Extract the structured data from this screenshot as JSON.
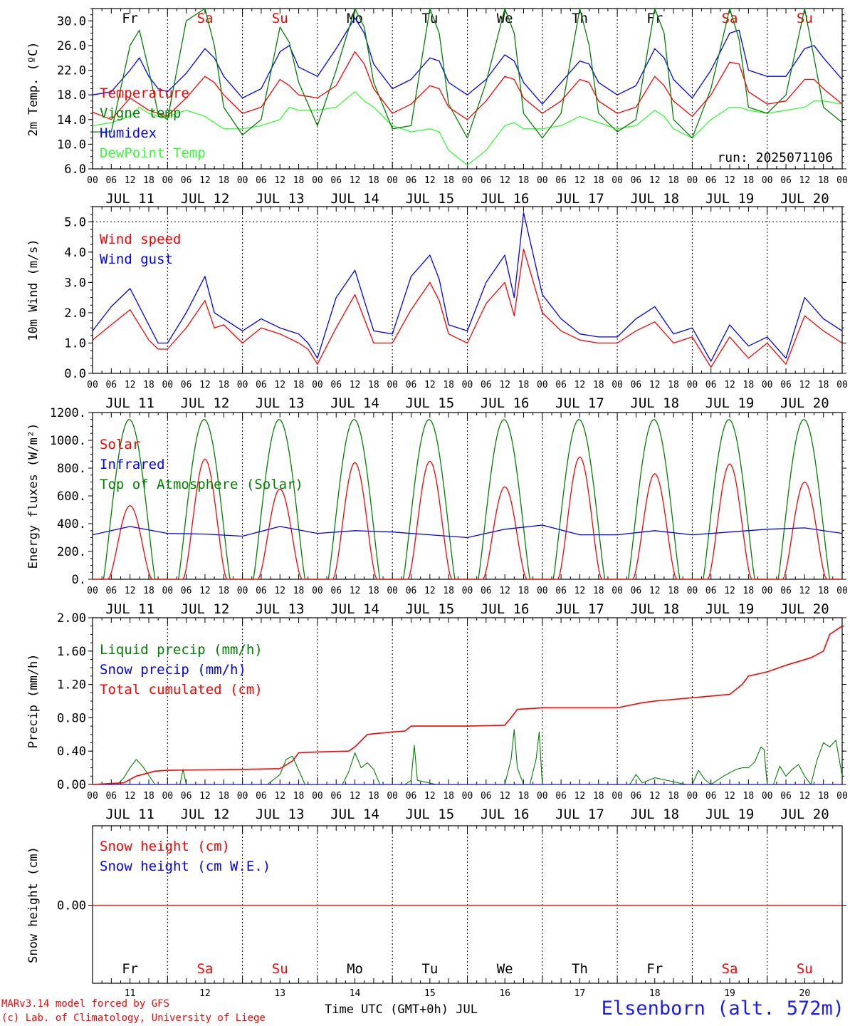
{
  "chart_data": [
    {
      "type": "line",
      "ylabel": "2m Temp. (ºC)",
      "ylim": [
        6.0,
        32.0
      ],
      "yticks": [
        6.0,
        10.0,
        14.0,
        18.0,
        22.0,
        26.0,
        30.0
      ],
      "ytick_labels": [
        "6.0",
        "10.0",
        "14.0",
        "18.0",
        "22.0",
        "26.0",
        "30.0"
      ],
      "annotation": "run: 2025071106",
      "day_labels": [
        "Fr",
        "Sa",
        "Su",
        "Mo",
        "Tu",
        "We",
        "Th",
        "Fr",
        "Sa",
        "Su"
      ],
      "x_hours": [
        0,
        6,
        12,
        15,
        18,
        21,
        24,
        30,
        36,
        39,
        42,
        48,
        54,
        60,
        63,
        66,
        72,
        78,
        84,
        87,
        90,
        96,
        102,
        108,
        111,
        114,
        120,
        126,
        132,
        135,
        138,
        144,
        150,
        156,
        159,
        162,
        168,
        174,
        180,
        183,
        186,
        192,
        198,
        204,
        207,
        210,
        216,
        222,
        228,
        231,
        234,
        240
      ],
      "series": [
        {
          "name": "Temperature",
          "color": "#ff0000",
          "values": [
            15.2,
            14.0,
            17.5,
            16.5,
            15.5,
            15.0,
            14.6,
            17.5,
            21.0,
            20.0,
            18.0,
            15.0,
            16.0,
            20.5,
            19.5,
            18.0,
            17.5,
            19.5,
            25.0,
            23.0,
            19.0,
            15.0,
            16.5,
            19.5,
            19.0,
            16.0,
            14.0,
            17.0,
            21.0,
            20.5,
            17.5,
            15.0,
            17.0,
            20.5,
            20.0,
            17.0,
            15.0,
            16.0,
            21.0,
            19.5,
            17.0,
            14.5,
            18.0,
            23.3,
            23.0,
            18.5,
            16.5,
            17.0,
            20.5,
            20.5,
            19.0,
            16.5
          ]
        },
        {
          "name": "Vigne temp",
          "color": "#008000",
          "values": [
            12.0,
            12.0,
            26.0,
            28.5,
            22.0,
            15.0,
            14.0,
            30.0,
            32.0,
            26.0,
            16.0,
            11.5,
            14.0,
            29.0,
            26.5,
            20.0,
            13.0,
            22.0,
            32.0,
            29.0,
            20.0,
            12.5,
            13.0,
            32.0,
            28.0,
            16.5,
            11.0,
            20.0,
            32.0,
            28.0,
            15.0,
            11.0,
            15.0,
            32.0,
            26.0,
            15.0,
            12.0,
            14.0,
            32.0,
            28.0,
            14.0,
            11.0,
            19.0,
            32.0,
            27.0,
            16.0,
            15.0,
            18.0,
            32.0,
            24.0,
            16.0,
            13.5
          ]
        },
        {
          "name": "Humidex",
          "color": "#0000ff",
          "values": [
            18.0,
            18.5,
            22.0,
            24.0,
            21.0,
            19.0,
            18.5,
            21.5,
            25.5,
            24.0,
            21.0,
            17.5,
            19.0,
            25.0,
            26.0,
            22.5,
            21.0,
            25.5,
            30.5,
            28.0,
            23.0,
            19.0,
            20.5,
            24.0,
            23.5,
            20.0,
            18.0,
            20.5,
            24.5,
            23.5,
            20.0,
            16.5,
            20.0,
            23.5,
            23.0,
            20.0,
            18.0,
            19.5,
            25.5,
            24.0,
            20.5,
            17.5,
            22.0,
            28.0,
            28.5,
            22.0,
            21.0,
            21.0,
            25.5,
            26.0,
            24.0,
            20.5
          ]
        },
        {
          "name": "DewPoint Temp",
          "color": "#33ff33",
          "values": [
            13.0,
            13.5,
            14.5,
            16.0,
            15.0,
            14.5,
            14.5,
            15.5,
            14.5,
            13.5,
            12.5,
            12.5,
            13.0,
            14.0,
            16.0,
            15.5,
            15.5,
            16.0,
            18.5,
            17.0,
            16.0,
            13.0,
            12.0,
            12.5,
            12.0,
            9.0,
            6.6,
            9.0,
            13.0,
            13.5,
            12.5,
            12.5,
            13.0,
            14.5,
            14.0,
            13.5,
            12.5,
            13.0,
            15.5,
            14.5,
            12.5,
            11.0,
            14.0,
            16.0,
            16.0,
            15.5,
            15.0,
            15.5,
            16.0,
            17.0,
            17.0,
            16.5
          ]
        }
      ]
    },
    {
      "type": "line",
      "ylabel": "10m Wind (m/s)",
      "ylim": [
        0.0,
        5.5
      ],
      "yticks": [
        0.0,
        1.0,
        2.0,
        3.0,
        4.0,
        5.0
      ],
      "ytick_labels": [
        "0.0",
        "1.0",
        "2.0",
        "3.0",
        "4.0",
        "5.0"
      ],
      "x_hours": [
        0,
        6,
        12,
        18,
        21,
        24,
        30,
        36,
        39,
        42,
        48,
        54,
        60,
        66,
        69,
        72,
        78,
        84,
        90,
        96,
        102,
        108,
        111,
        114,
        120,
        126,
        132,
        135,
        138,
        144,
        150,
        156,
        162,
        168,
        174,
        180,
        186,
        192,
        198,
        204,
        210,
        216,
        222,
        228,
        234,
        240
      ],
      "series": [
        {
          "name": "Wind speed",
          "color": "#ff0000",
          "values": [
            1.1,
            1.6,
            2.1,
            1.1,
            0.8,
            0.8,
            1.5,
            2.4,
            1.5,
            1.6,
            1.0,
            1.5,
            1.3,
            1.0,
            0.8,
            0.3,
            1.5,
            2.6,
            1.0,
            1.0,
            2.1,
            3.0,
            2.4,
            1.3,
            1.0,
            2.3,
            3.0,
            1.9,
            4.1,
            2.0,
            1.4,
            1.1,
            1.0,
            1.0,
            1.4,
            1.7,
            1.0,
            1.2,
            0.2,
            1.2,
            0.5,
            1.0,
            0.3,
            1.9,
            1.4,
            1.0
          ]
        },
        {
          "name": "Wind gust",
          "color": "#0000ff",
          "values": [
            1.4,
            2.2,
            2.8,
            1.6,
            1.0,
            1.0,
            2.0,
            3.2,
            2.0,
            1.8,
            1.4,
            1.8,
            1.5,
            1.3,
            1.0,
            0.5,
            2.5,
            3.4,
            1.4,
            1.3,
            3.2,
            3.9,
            3.1,
            1.6,
            1.4,
            3.0,
            3.9,
            2.5,
            5.3,
            2.6,
            1.8,
            1.3,
            1.2,
            1.2,
            1.8,
            2.2,
            1.3,
            1.5,
            0.4,
            1.6,
            0.9,
            1.2,
            0.5,
            2.5,
            1.8,
            1.4
          ]
        }
      ]
    },
    {
      "type": "line",
      "ylabel": "Energy fluxes (W/m²)",
      "ylim": [
        0,
        1200
      ],
      "yticks": [
        0,
        200,
        400,
        600,
        800,
        1000,
        1200
      ],
      "ytick_labels": [
        "0.",
        "200.",
        "400.",
        "600.",
        "800.",
        "1000.",
        "1200."
      ],
      "daily_solar_peak_W_m2": [
        530,
        865,
        650,
        840,
        850,
        665,
        880,
        760,
        830,
        700
      ],
      "daily_toa_peak_W_m2": 1150,
      "series": [
        {
          "name": "Solar",
          "color": "#ff0000"
        },
        {
          "name": "Infrared",
          "color": "#0000ff",
          "x_hours": [
            0,
            12,
            24,
            36,
            48,
            60,
            72,
            84,
            96,
            108,
            120,
            132,
            144,
            156,
            168,
            180,
            192,
            204,
            216,
            228,
            240
          ],
          "values": [
            320,
            380,
            330,
            325,
            310,
            380,
            330,
            350,
            340,
            320,
            300,
            360,
            390,
            320,
            320,
            350,
            320,
            340,
            360,
            370,
            330
          ]
        },
        {
          "name": "Top of Atmosphere (Solar)",
          "color": "#008000"
        }
      ]
    },
    {
      "type": "line",
      "ylabel": "Precip (mm/h)",
      "ylim": [
        0.0,
        2.0
      ],
      "yticks": [
        0.0,
        0.4,
        0.8,
        1.2,
        1.6,
        2.0
      ],
      "ytick_labels": [
        "0.00",
        "0.40",
        "0.80",
        "1.20",
        "1.60",
        "2.00"
      ],
      "series": [
        {
          "name": "Liquid precip (mm/h)",
          "color": "#008000",
          "x_hours": [
            0,
            8,
            10,
            12,
            14,
            16,
            20,
            28,
            29,
            30,
            56,
            60,
            62,
            64,
            68,
            80,
            82,
            84,
            86,
            88,
            90,
            92,
            100,
            102,
            103,
            104,
            110,
            132,
            134,
            135,
            136,
            138,
            140,
            142,
            143,
            144,
            172,
            174,
            176,
            180,
            190,
            192,
            194,
            196,
            198,
            202,
            206,
            208,
            210,
            212,
            214,
            215,
            216,
            218,
            220,
            222,
            224,
            226,
            228,
            230,
            232,
            234,
            236,
            238,
            240
          ],
          "values": [
            0,
            0,
            0.08,
            0.2,
            0.3,
            0.22,
            0,
            0,
            0.18,
            0,
            0,
            0.12,
            0.3,
            0.34,
            0,
            0,
            0.15,
            0.38,
            0.2,
            0.26,
            0.18,
            0,
            0,
            0.05,
            0.47,
            0.05,
            0,
            0,
            0.3,
            0.66,
            0.2,
            0,
            0,
            0.3,
            0.63,
            0,
            0,
            0.12,
            0.02,
            0.08,
            0,
            0,
            0.17,
            0.06,
            0,
            0.1,
            0.18,
            0.2,
            0.2,
            0.27,
            0.45,
            0.42,
            0,
            0,
            0.22,
            0.1,
            0.18,
            0.24,
            0.1,
            0,
            0.3,
            0.5,
            0.45,
            0.53,
            0.1
          ]
        },
        {
          "name": "Snow precip (mm/h)",
          "color": "#0000ff",
          "x_hours": [
            0,
            240
          ],
          "values": [
            0,
            0
          ]
        },
        {
          "name": "Total cumulated (cm)",
          "color": "#ff0000",
          "x_hours": [
            0,
            10,
            14,
            20,
            24,
            48,
            60,
            64,
            66,
            72,
            82,
            84,
            88,
            96,
            100,
            102,
            120,
            132,
            134,
            136,
            144,
            168,
            176,
            180,
            204,
            208,
            210,
            216,
            222,
            230,
            234,
            236,
            240
          ],
          "values": [
            0,
            0.02,
            0.1,
            0.16,
            0.17,
            0.18,
            0.19,
            0.28,
            0.38,
            0.39,
            0.4,
            0.45,
            0.6,
            0.63,
            0.64,
            0.7,
            0.7,
            0.71,
            0.8,
            0.9,
            0.92,
            0.92,
            0.98,
            1.0,
            1.08,
            1.2,
            1.3,
            1.35,
            1.43,
            1.52,
            1.6,
            1.8,
            1.9
          ]
        }
      ]
    },
    {
      "type": "line",
      "ylabel": "Snow height (cm)",
      "ytick_labels": [
        "0.00"
      ],
      "day_labels": [
        "Fr",
        "Sa",
        "Su",
        "Mo",
        "Tu",
        "We",
        "Th",
        "Fr",
        "Sa",
        "Su"
      ],
      "day_numbers": [
        "11",
        "12",
        "13",
        "14",
        "15",
        "16",
        "17",
        "18",
        "19",
        "20"
      ],
      "xlabel": "Time UTC (GMT+0h) JUL",
      "series": [
        {
          "name": "Snow height (cm)",
          "color": "#ff0000",
          "x_hours": [
            0,
            240
          ],
          "values": [
            0,
            0
          ]
        },
        {
          "name": "Snow height (cm W.E.)",
          "color": "#0000ff"
        }
      ]
    }
  ],
  "axis": {
    "hour_labels": [
      "00",
      "06",
      "12",
      "18"
    ],
    "end_hour_label": "00",
    "date_labels": [
      "JUL 11",
      "JUL 12",
      "JUL 13",
      "JUL 14",
      "JUL 15",
      "JUL 16",
      "JUL 17",
      "JUL 18",
      "JUL 19",
      "JUL 20"
    ]
  },
  "colors": {
    "weekday": "#000000",
    "weekend": "#ff0000"
  },
  "weekend_days": [
    "Sa",
    "Su"
  ],
  "footer": {
    "credit1": "MARv3.14 model forced by GFS",
    "credit2": "(c) Lab. of Climatology, University of Liege",
    "station": "Elsenborn (alt. 572m)"
  }
}
